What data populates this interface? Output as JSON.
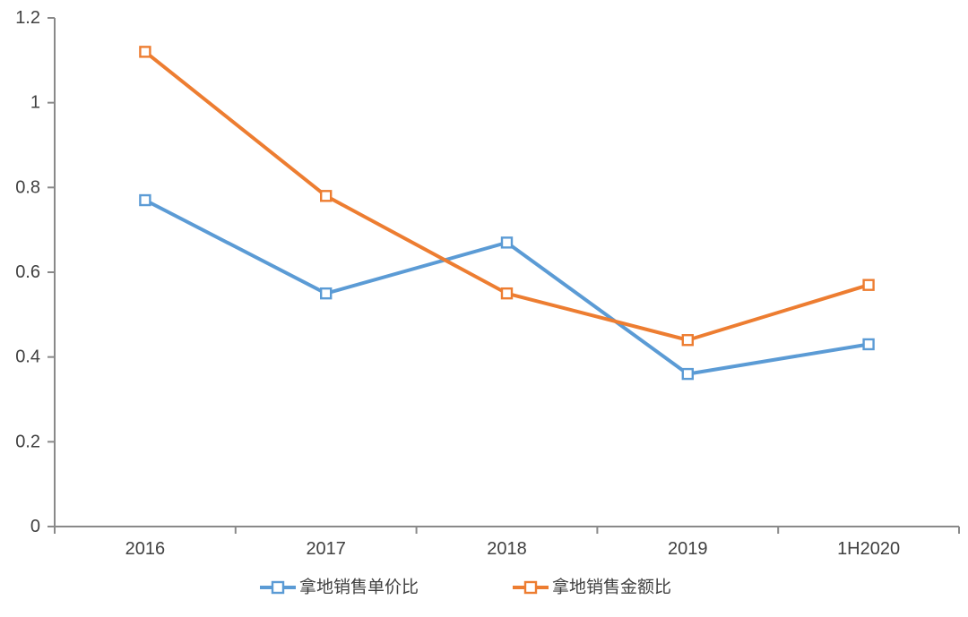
{
  "chart_data": {
    "type": "line",
    "title": "",
    "xlabel": "",
    "ylabel": "",
    "categories": [
      "2016",
      "2017",
      "2018",
      "2019",
      "1H2020"
    ],
    "series": [
      {
        "name": "拿地销售单价比",
        "color": "#5B9BD5",
        "values": [
          0.77,
          0.55,
          0.67,
          0.36,
          0.43
        ]
      },
      {
        "name": "拿地销售金额比",
        "color": "#ED7D31",
        "values": [
          1.12,
          0.78,
          0.55,
          0.44,
          0.57
        ]
      }
    ],
    "ylim": [
      0,
      1.2
    ],
    "yticks": [
      0,
      0.2,
      0.4,
      0.6,
      0.8,
      1,
      1.2
    ],
    "ytick_labels": [
      "0",
      "0.2",
      "0.4",
      "0.6",
      "0.8",
      "1",
      "1.2"
    ],
    "grid": false,
    "marker": "open-square",
    "legend_position": "bottom",
    "colors": {
      "axis": "#898989",
      "tick_label": "#404040",
      "legend_text": "#404040",
      "background": "#ffffff"
    }
  }
}
